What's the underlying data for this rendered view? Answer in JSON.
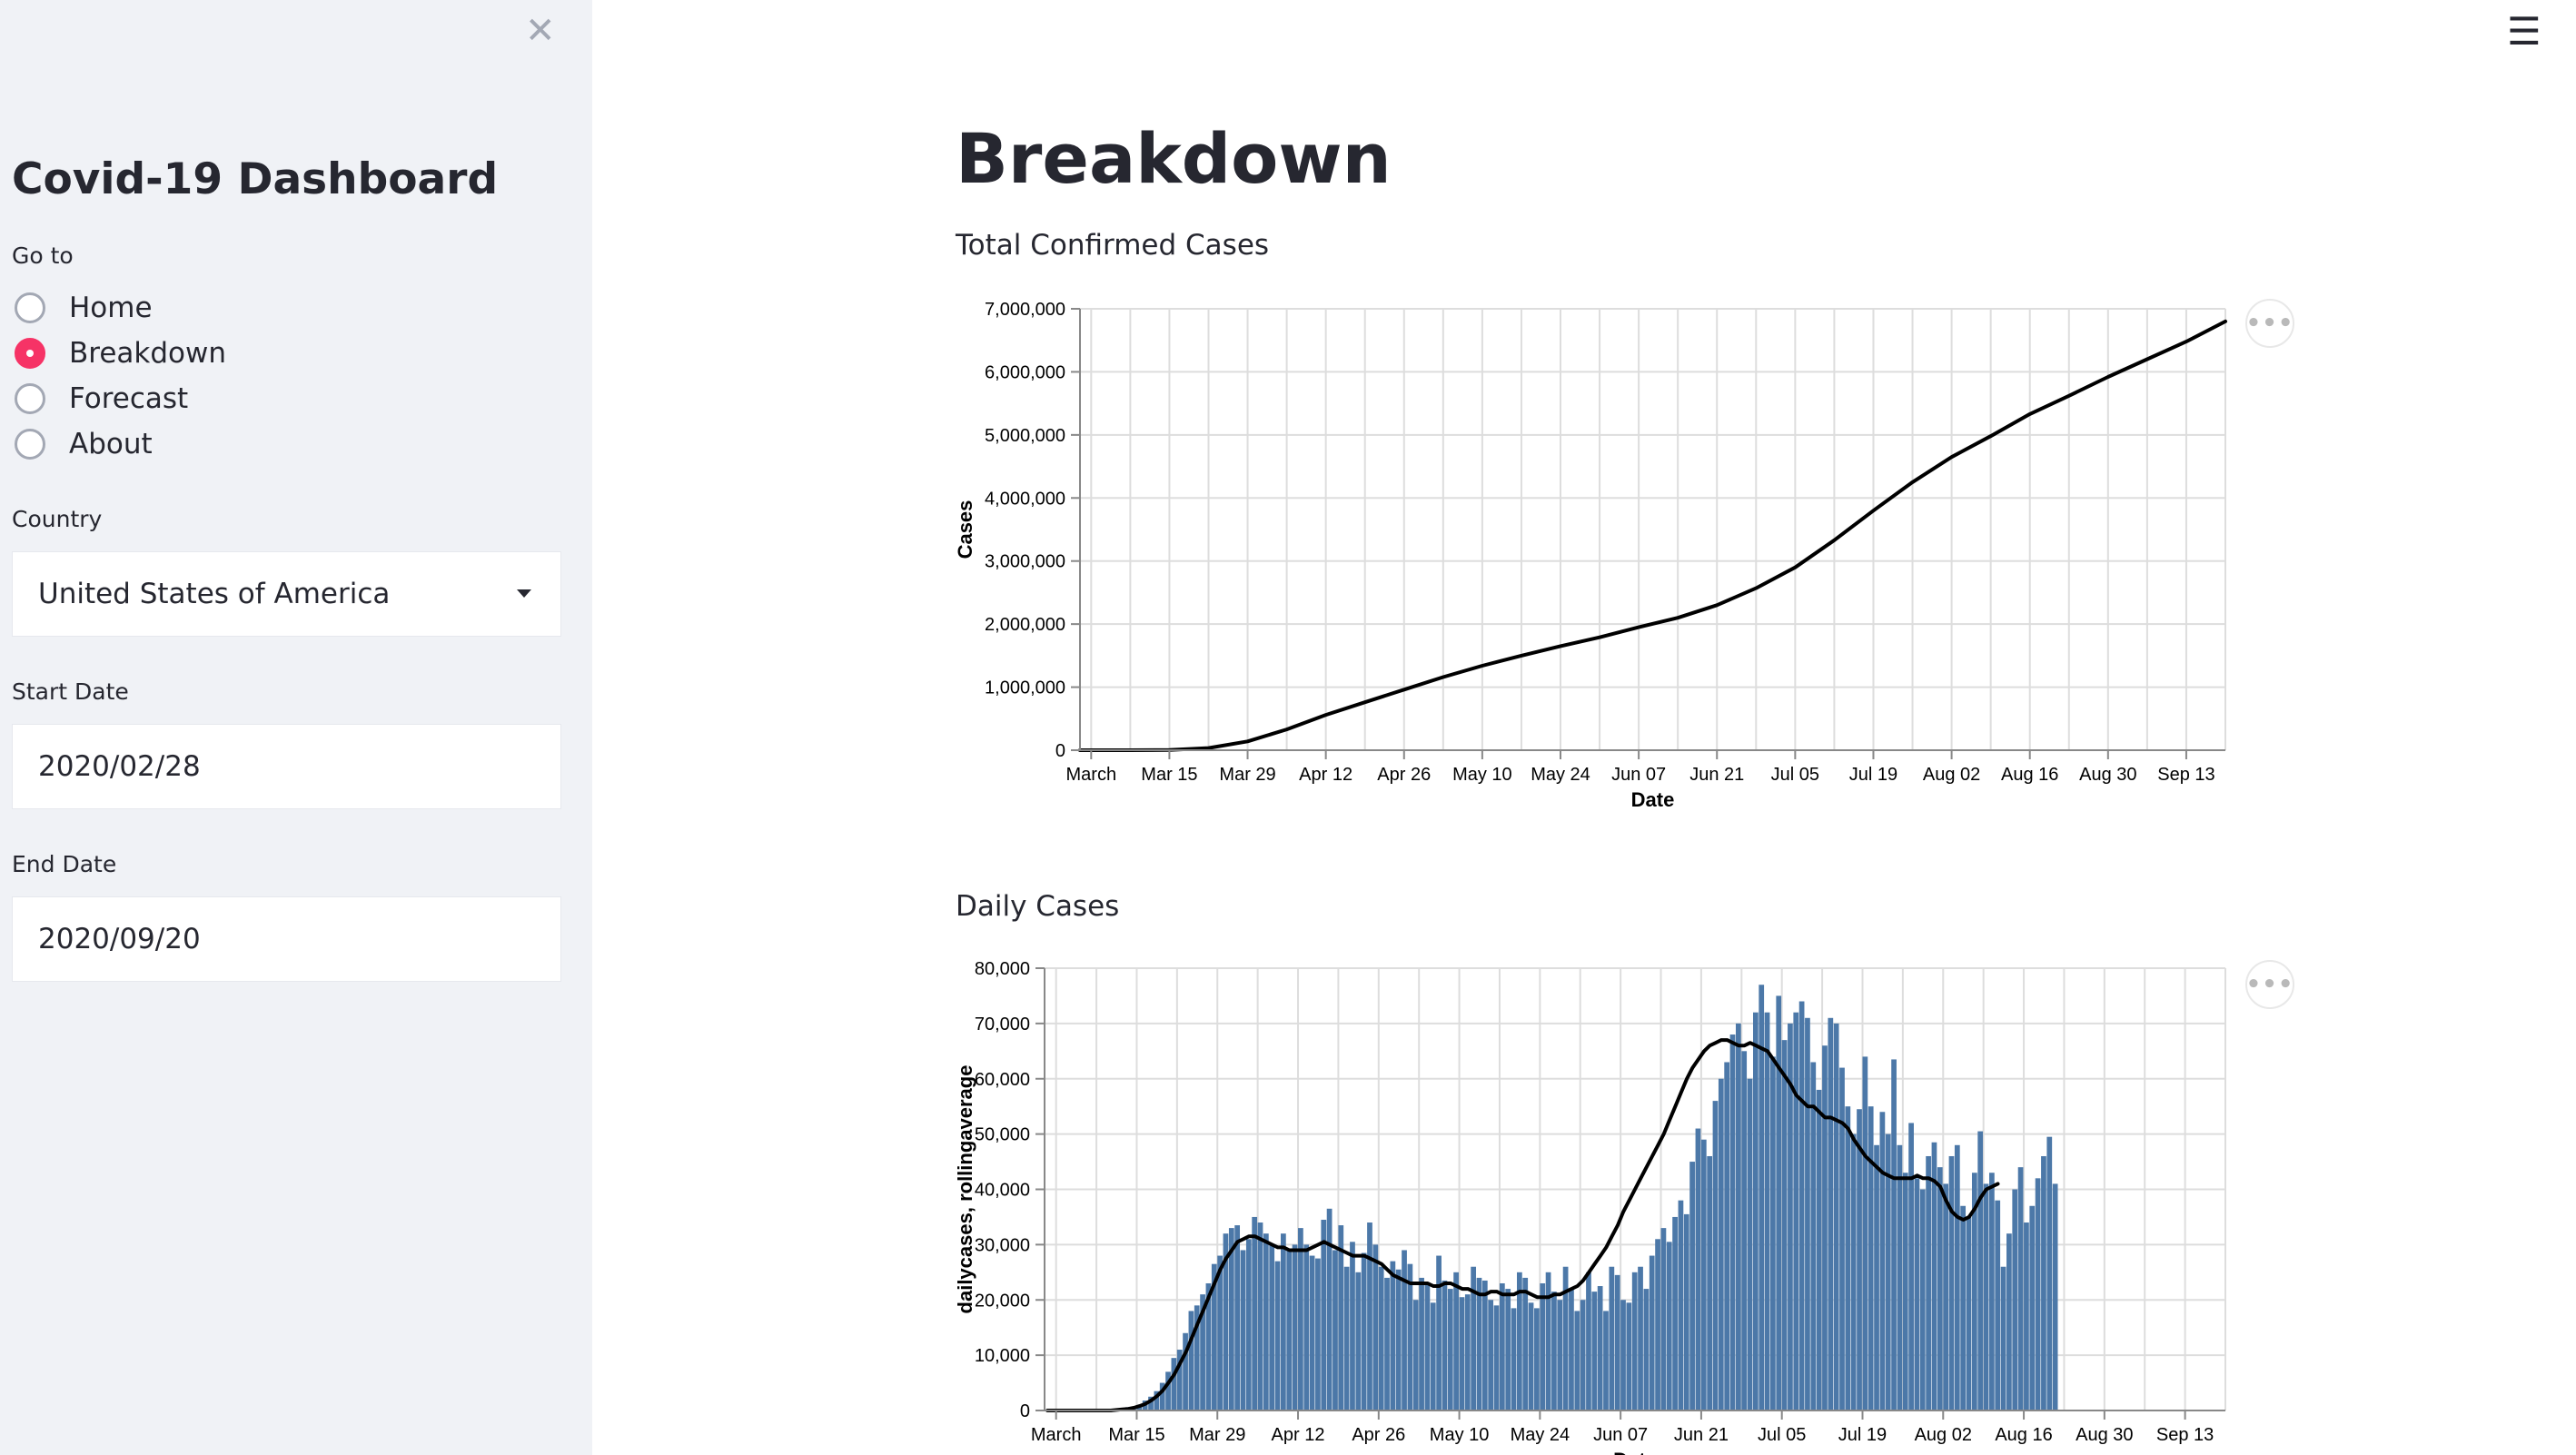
{
  "sidebar": {
    "title": "Covid-19 Dashboard",
    "goto_label": "Go to",
    "nav": [
      {
        "label": "Home",
        "selected": false
      },
      {
        "label": "Breakdown",
        "selected": true
      },
      {
        "label": "Forecast",
        "selected": false
      },
      {
        "label": "About",
        "selected": false
      }
    ],
    "country_label": "Country",
    "country_value": "United States of America",
    "start_label": "Start Date",
    "start_value": "2020/02/28",
    "end_label": "End Date",
    "end_value": "2020/09/20"
  },
  "page": {
    "title": "Breakdown",
    "accent_color": "#f63366"
  },
  "icons": {
    "close": "close-icon",
    "menu": "hamburger-menu-icon",
    "more": "more-options-icon"
  },
  "chart_data": [
    {
      "type": "line",
      "title": "Total Confirmed Cases",
      "xlabel": "Date",
      "ylabel": "Cases",
      "x_range": [
        "2020-02-28",
        "2020-09-20"
      ],
      "ylim": [
        0,
        7000000
      ],
      "yticks": [
        0,
        1000000,
        2000000,
        3000000,
        4000000,
        5000000,
        6000000,
        7000000
      ],
      "ytick_labels": [
        "0",
        "1,000,000",
        "2,000,000",
        "3,000,000",
        "4,000,000",
        "5,000,000",
        "6,000,000",
        "7,000,000"
      ],
      "xtick_labels": [
        "March",
        "Mar 15",
        "Mar 29",
        "Apr 12",
        "Apr 26",
        "May 10",
        "May 24",
        "Jun 07",
        "Jun 21",
        "Jul 05",
        "Jul 19",
        "Aug 02",
        "Aug 16",
        "Aug 30",
        "Sep 13"
      ],
      "xtick_dates": [
        "2020-03-01",
        "2020-03-15",
        "2020-03-29",
        "2020-04-12",
        "2020-04-26",
        "2020-05-10",
        "2020-05-24",
        "2020-06-07",
        "2020-06-21",
        "2020-07-05",
        "2020-07-19",
        "2020-08-02",
        "2020-08-16",
        "2020-08-30",
        "2020-09-13"
      ],
      "line_color": "#000000",
      "grid": true,
      "series": [
        {
          "x": [
            "2020-02-28",
            "2020-03-08",
            "2020-03-15",
            "2020-03-22",
            "2020-03-29",
            "2020-04-05",
            "2020-04-12",
            "2020-04-19",
            "2020-04-26",
            "2020-05-03",
            "2020-05-10",
            "2020-05-17",
            "2020-05-24",
            "2020-05-31",
            "2020-06-07",
            "2020-06-14",
            "2020-06-21",
            "2020-06-28",
            "2020-07-05",
            "2020-07-12",
            "2020-07-19",
            "2020-07-26",
            "2020-08-02",
            "2020-08-09",
            "2020-08-16",
            "2020-08-23",
            "2020-08-30",
            "2020-09-06",
            "2020-09-13",
            "2020-09-20"
          ],
          "y": [
            0,
            600,
            3500,
            35000,
            140000,
            330000,
            560000,
            760000,
            960000,
            1160000,
            1340000,
            1500000,
            1650000,
            1790000,
            1950000,
            2100000,
            2300000,
            2570000,
            2900000,
            3330000,
            3800000,
            4250000,
            4650000,
            4980000,
            5330000,
            5620000,
            5920000,
            6200000,
            6480000,
            6800000
          ]
        }
      ]
    },
    {
      "type": "bar",
      "title": "Daily Cases",
      "xlabel": "Date",
      "ylabel": "dailycases, rollingaverage",
      "x_range": [
        "2020-02-28",
        "2020-09-20"
      ],
      "ylim": [
        0,
        80000
      ],
      "yticks": [
        0,
        10000,
        20000,
        30000,
        40000,
        50000,
        60000,
        70000,
        80000
      ],
      "ytick_labels": [
        "0",
        "10,000",
        "20,000",
        "30,000",
        "40,000",
        "50,000",
        "60,000",
        "70,000",
        "80,000"
      ],
      "xtick_labels": [
        "March",
        "Mar 15",
        "Mar 29",
        "Apr 12",
        "Apr 26",
        "May 10",
        "May 24",
        "Jun 07",
        "Jun 21",
        "Jul 05",
        "Jul 19",
        "Aug 02",
        "Aug 16",
        "Aug 30",
        "Sep 13"
      ],
      "xtick_dates": [
        "2020-03-01",
        "2020-03-15",
        "2020-03-29",
        "2020-04-12",
        "2020-04-26",
        "2020-05-10",
        "2020-05-24",
        "2020-06-07",
        "2020-06-21",
        "2020-07-05",
        "2020-07-19",
        "2020-08-02",
        "2020-08-16",
        "2020-08-30",
        "2020-09-13"
      ],
      "bar_color": "#4c78a8",
      "line_color": "#000000",
      "grid": true,
      "daily_start": "2020-02-28",
      "series": [
        {
          "name": "dailycases",
          "values": [
            0,
            0,
            0,
            0,
            0,
            0,
            0,
            0,
            0,
            0,
            0,
            0,
            200,
            400,
            600,
            700,
            1000,
            1800,
            2500,
            3500,
            5000,
            7000,
            9500,
            11000,
            14000,
            18000,
            19000,
            21000,
            23000,
            26500,
            28000,
            32000,
            33000,
            33500,
            29000,
            31000,
            35000,
            34000,
            32000,
            30000,
            27000,
            32000,
            29000,
            30000,
            33000,
            30000,
            28000,
            27500,
            34500,
            36500,
            29000,
            33500,
            26000,
            30500,
            25000,
            28500,
            34000,
            30000,
            26000,
            24000,
            27000,
            25500,
            29000,
            26500,
            20000,
            24000,
            23000,
            19500,
            28000,
            23500,
            22000,
            25000,
            20500,
            21000,
            26000,
            24000,
            23500,
            20000,
            19000,
            23000,
            22000,
            18500,
            25000,
            24000,
            19500,
            18500,
            23000,
            25000,
            21500,
            20000,
            26000,
            22000,
            18000,
            20000,
            25000,
            21500,
            22500,
            18000,
            26000,
            24500,
            20000,
            19500,
            25000,
            26000,
            22000,
            28000,
            31000,
            33000,
            30500,
            35000,
            38000,
            35500,
            45000,
            51000,
            49000,
            46000,
            56000,
            60000,
            63000,
            68000,
            70000,
            65000,
            60000,
            72000,
            77000,
            72000,
            64000,
            75000,
            67000,
            70000,
            72000,
            74000,
            71000,
            63000,
            58000,
            66000,
            71000,
            70000,
            62000,
            55000,
            50000,
            54500,
            64000,
            55000,
            48000,
            54000,
            50000,
            63500,
            48000,
            43000,
            52000,
            42000,
            40000,
            46000,
            48500,
            44000,
            41000,
            46000,
            48000,
            37000,
            35000,
            43000,
            50500,
            41000,
            43000,
            38000,
            26000,
            32000,
            40000,
            44000,
            34000,
            37000,
            42000,
            46000,
            49500,
            41000
          ]
        },
        {
          "name": "rollingaverage",
          "values": [
            0,
            0,
            0,
            0,
            0,
            0,
            0,
            0,
            0,
            0,
            0,
            0,
            100,
            200,
            300,
            500,
            800,
            1200,
            1800,
            2600,
            3600,
            5000,
            6500,
            8500,
            10500,
            13000,
            15500,
            18000,
            20500,
            23000,
            25500,
            27500,
            29000,
            30500,
            31000,
            31500,
            31500,
            31000,
            30500,
            30000,
            29500,
            29500,
            29000,
            29000,
            29000,
            29000,
            29500,
            30000,
            30500,
            30000,
            29500,
            29000,
            28500,
            28000,
            28000,
            28000,
            27500,
            27000,
            26500,
            25500,
            24500,
            24000,
            23500,
            23000,
            23000,
            23000,
            23000,
            22500,
            22500,
            23000,
            23000,
            22500,
            22000,
            22000,
            21500,
            21000,
            21000,
            21500,
            21500,
            21000,
            21000,
            21000,
            21500,
            21500,
            21000,
            20500,
            20500,
            20500,
            21000,
            21000,
            21500,
            22000,
            22500,
            23500,
            25000,
            26500,
            28000,
            29500,
            31500,
            33500,
            36000,
            38000,
            40000,
            42000,
            44000,
            46000,
            48000,
            50000,
            52500,
            55000,
            57500,
            60000,
            62000,
            63500,
            65000,
            66000,
            66500,
            67000,
            67000,
            66500,
            66000,
            66000,
            66500,
            66000,
            65500,
            65000,
            63500,
            62000,
            60500,
            59000,
            57000,
            56000,
            55000,
            55000,
            54000,
            53000,
            53000,
            52500,
            52000,
            51000,
            49000,
            47500,
            46000,
            45000,
            44000,
            43000,
            42500,
            42000,
            42000,
            42000,
            42000,
            42500,
            42000,
            42000,
            41500,
            40500,
            38000,
            36000,
            35000,
            34500,
            35000,
            36500,
            38500,
            40000,
            40500,
            41000
          ]
        }
      ]
    }
  ]
}
